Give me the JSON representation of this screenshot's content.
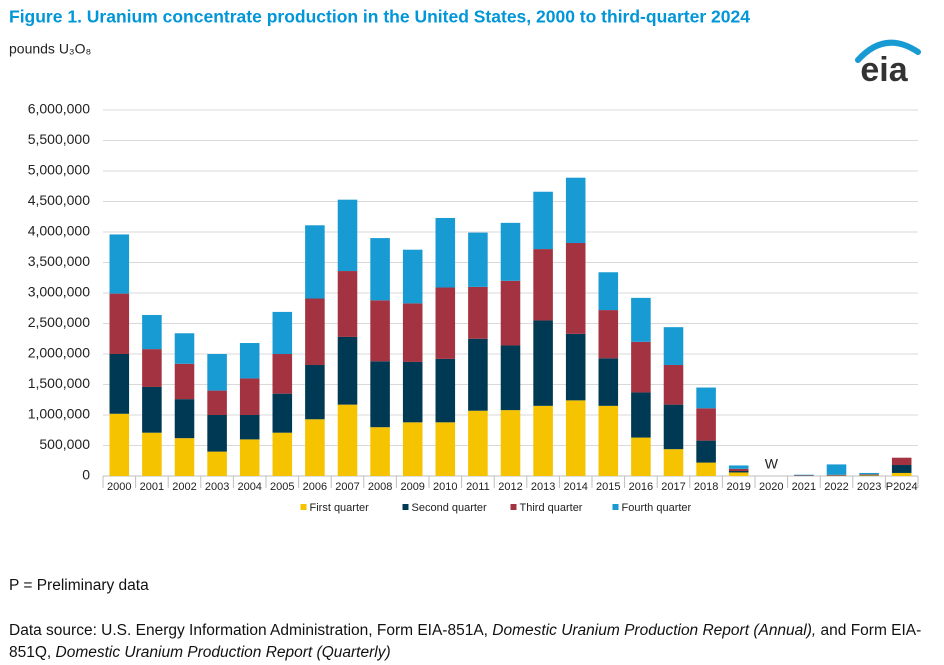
{
  "chart_data": {
    "type": "bar",
    "stacked": true,
    "title": "Figure 1. Uranium concentrate production in the United States, 2000 to third-quarter 2024",
    "y_label": "pounds U₃O₈",
    "logo": "eia",
    "categories": [
      "2000",
      "2001",
      "2002",
      "2003",
      "2004",
      "2005",
      "2006",
      "2007",
      "2008",
      "2009",
      "2010",
      "2011",
      "2012",
      "2013",
      "2014",
      "2015",
      "2016",
      "2017",
      "2018",
      "2019",
      "2020",
      "2021",
      "2022",
      "2023",
      "P2024"
    ],
    "series": [
      {
        "name": "First quarter",
        "color": "#f5c300",
        "values": [
          1020000,
          710000,
          620000,
          400000,
          600000,
          710000,
          930000,
          1170000,
          800000,
          880000,
          880000,
          1070000,
          1080000,
          1150000,
          1240000,
          1150000,
          630000,
          440000,
          220000,
          58000,
          null,
          0,
          5000,
          10000,
          50000
        ]
      },
      {
        "name": "Second quarter",
        "color": "#003953",
        "values": [
          980000,
          750000,
          640000,
          600000,
          400000,
          640000,
          890000,
          1110000,
          1080000,
          990000,
          1040000,
          1180000,
          1060000,
          1400000,
          1090000,
          780000,
          740000,
          730000,
          360000,
          24000,
          null,
          5000,
          5000,
          10000,
          130000
        ]
      },
      {
        "name": "Third quarter",
        "color": "#a33340",
        "values": [
          990000,
          620000,
          580000,
          400000,
          600000,
          650000,
          1090000,
          1080000,
          1000000,
          960000,
          1170000,
          850000,
          1060000,
          1170000,
          1490000,
          790000,
          830000,
          650000,
          530000,
          36000,
          null,
          8000,
          10000,
          10000,
          120000
        ]
      },
      {
        "name": "Fourth quarter",
        "color": "#189ad3",
        "values": [
          970000,
          560000,
          500000,
          600000,
          580000,
          690000,
          1200000,
          1170000,
          1020000,
          880000,
          1140000,
          890000,
          950000,
          940000,
          1070000,
          620000,
          720000,
          620000,
          340000,
          55000,
          null,
          8000,
          170000,
          20000,
          null
        ]
      }
    ],
    "annotations": [
      {
        "text": "W",
        "x": "2020"
      }
    ],
    "ylim": [
      0,
      6000000
    ],
    "yticks": [
      0,
      {
        "value": 500000,
        "label": "500,000"
      },
      {
        "value": 1000000,
        "label": "1,000,000"
      },
      {
        "value": 1500000,
        "label": "1,500,000"
      },
      {
        "value": 2000000,
        "label": "2,000,000"
      },
      {
        "value": 2500000,
        "label": "2,500,000"
      },
      {
        "value": 3000000,
        "label": "3,000,000"
      },
      {
        "value": 3500000,
        "label": "3,500,000"
      },
      {
        "value": 4000000,
        "label": "4,000,000"
      },
      {
        "value": 4500000,
        "label": "4,500,000"
      },
      {
        "value": 5000000,
        "label": "5,000,000"
      },
      {
        "value": 5500000,
        "label": "5,500,000"
      },
      {
        "value": 6000000,
        "label": "6,000,000"
      }
    ],
    "grid": true,
    "legend": "bottom",
    "note": "P = Preliminary data",
    "source": [
      {
        "text": "Data source: U.S. Energy Information Administration, Form EIA-851A, "
      },
      {
        "text": "Domestic Uranium Production Report (Annual),",
        "italic": true
      },
      {
        "text": " and Form EIA-851Q, "
      },
      {
        "text": "Domestic Uranium Production Report (Quarterly)",
        "italic": true
      }
    ]
  }
}
